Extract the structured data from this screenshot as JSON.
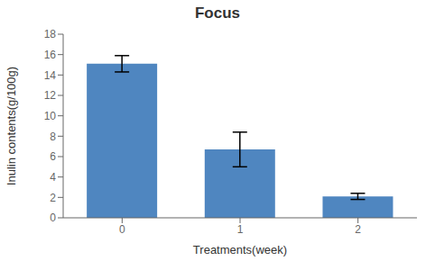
{
  "chart_data": {
    "type": "bar",
    "title": "Focus",
    "x_label": "Treatments(week)",
    "y_label": "Inulin contents(g/100g)",
    "categories": [
      "0",
      "1",
      "2"
    ],
    "values": [
      15.1,
      6.7,
      2.1
    ],
    "errors": [
      0.8,
      1.7,
      0.3
    ],
    "color": "#4f86c0",
    "ylim": [
      0,
      18
    ],
    "yticks": [
      0,
      2,
      4,
      6,
      8,
      10,
      12,
      14,
      16,
      18
    ],
    "grid": false
  }
}
